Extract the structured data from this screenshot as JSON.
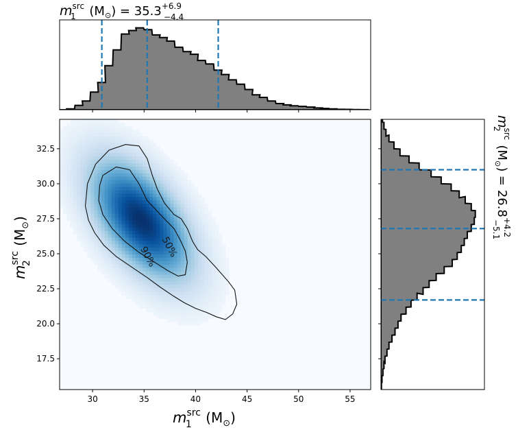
{
  "chart_data": {
    "type": "corner",
    "title_top": {
      "sym": "m",
      "sub": "1",
      "sup": "src",
      "unit": " (M",
      "unit_sub": "⊙",
      "eq": ") = 35.3",
      "plus": "+6.9",
      "minus": "−4.4"
    },
    "title_right": {
      "sym": "m",
      "sub": "2",
      "sup": "src",
      "unit": " (M",
      "unit_sub": "⊙",
      "eq": ") = 26.8",
      "plus": "+4.2",
      "minus": "−5.1"
    },
    "xlabel": {
      "sym": "m",
      "sub": "1",
      "sup": "src",
      "unit": " (M",
      "unit_sub": "⊙",
      "close": ")"
    },
    "ylabel": {
      "sym": "m",
      "sub": "2",
      "sup": "src",
      "unit": " (M",
      "unit_sub": "⊙",
      "close": ")"
    },
    "xlim": [
      26.8,
      57.0
    ],
    "ylim": [
      15.3,
      34.6
    ],
    "xticks": [
      30,
      35,
      40,
      45,
      50,
      55
    ],
    "xtick_labels": [
      "30",
      "35",
      "40",
      "45",
      "50",
      "55"
    ],
    "yticks": [
      17.5,
      20.0,
      22.5,
      25.0,
      27.5,
      30.0,
      32.5
    ],
    "ytick_labels": [
      "17.5",
      "20.0",
      "22.5",
      "25.0",
      "27.5",
      "30.0",
      "32.5"
    ],
    "m1_quantiles": [
      30.9,
      35.3,
      42.2
    ],
    "m2_quantiles": [
      21.7,
      26.8,
      31.0
    ],
    "m1_histogram": {
      "bin_width": 0.75,
      "bins": [
        {
          "x": 26.8,
          "d": 0.0
        },
        {
          "x": 27.5,
          "d": 0.01
        },
        {
          "x": 28.3,
          "d": 0.05
        },
        {
          "x": 29.0,
          "d": 0.1
        },
        {
          "x": 29.8,
          "d": 0.2
        },
        {
          "x": 30.5,
          "d": 0.31
        },
        {
          "x": 31.2,
          "d": 0.5
        },
        {
          "x": 32.0,
          "d": 0.68
        },
        {
          "x": 32.8,
          "d": 0.86
        },
        {
          "x": 33.5,
          "d": 0.9
        },
        {
          "x": 34.2,
          "d": 0.93
        },
        {
          "x": 35.0,
          "d": 0.91
        },
        {
          "x": 35.8,
          "d": 0.85
        },
        {
          "x": 36.5,
          "d": 0.82
        },
        {
          "x": 37.2,
          "d": 0.78
        },
        {
          "x": 38.0,
          "d": 0.71
        },
        {
          "x": 38.8,
          "d": 0.66
        },
        {
          "x": 39.5,
          "d": 0.63
        },
        {
          "x": 40.2,
          "d": 0.56
        },
        {
          "x": 41.0,
          "d": 0.52
        },
        {
          "x": 41.8,
          "d": 0.45
        },
        {
          "x": 42.5,
          "d": 0.4
        },
        {
          "x": 43.2,
          "d": 0.34
        },
        {
          "x": 44.0,
          "d": 0.29
        },
        {
          "x": 44.8,
          "d": 0.23
        },
        {
          "x": 45.5,
          "d": 0.17
        },
        {
          "x": 46.2,
          "d": 0.14
        },
        {
          "x": 47.0,
          "d": 0.1
        },
        {
          "x": 47.8,
          "d": 0.07
        },
        {
          "x": 48.5,
          "d": 0.055
        },
        {
          "x": 49.2,
          "d": 0.045
        },
        {
          "x": 50.0,
          "d": 0.038
        },
        {
          "x": 50.8,
          "d": 0.03
        },
        {
          "x": 51.5,
          "d": 0.02
        },
        {
          "x": 52.2,
          "d": 0.015
        },
        {
          "x": 53.0,
          "d": 0.01
        },
        {
          "x": 53.8,
          "d": 0.005
        },
        {
          "x": 54.5,
          "d": 0.004
        },
        {
          "x": 55.2,
          "d": 0.002
        },
        {
          "x": 56.0,
          "d": 0.001
        }
      ]
    },
    "m2_histogram": {
      "bin_width": 0.48,
      "bins": [
        {
          "y": 15.3,
          "d": 0.005
        },
        {
          "y": 15.8,
          "d": 0.01
        },
        {
          "y": 16.3,
          "d": 0.02
        },
        {
          "y": 16.8,
          "d": 0.03
        },
        {
          "y": 17.2,
          "d": 0.04
        },
        {
          "y": 17.7,
          "d": 0.06
        },
        {
          "y": 18.2,
          "d": 0.08
        },
        {
          "y": 18.7,
          "d": 0.11
        },
        {
          "y": 19.2,
          "d": 0.14
        },
        {
          "y": 19.7,
          "d": 0.17
        },
        {
          "y": 20.2,
          "d": 0.2
        },
        {
          "y": 20.7,
          "d": 0.25
        },
        {
          "y": 21.2,
          "d": 0.3
        },
        {
          "y": 21.7,
          "d": 0.36
        },
        {
          "y": 22.1,
          "d": 0.42
        },
        {
          "y": 22.6,
          "d": 0.48
        },
        {
          "y": 23.1,
          "d": 0.55
        },
        {
          "y": 23.6,
          "d": 0.63
        },
        {
          "y": 24.1,
          "d": 0.71
        },
        {
          "y": 24.6,
          "d": 0.76
        },
        {
          "y": 25.1,
          "d": 0.8
        },
        {
          "y": 25.6,
          "d": 0.83
        },
        {
          "y": 26.1,
          "d": 0.86
        },
        {
          "y": 26.6,
          "d": 0.9
        },
        {
          "y": 27.1,
          "d": 0.93
        },
        {
          "y": 27.6,
          "d": 0.94
        },
        {
          "y": 28.1,
          "d": 0.9
        },
        {
          "y": 28.6,
          "d": 0.84
        },
        {
          "y": 29.0,
          "d": 0.78
        },
        {
          "y": 29.5,
          "d": 0.7
        },
        {
          "y": 30.0,
          "d": 0.6
        },
        {
          "y": 30.5,
          "d": 0.5
        },
        {
          "y": 31.0,
          "d": 0.38
        },
        {
          "y": 31.5,
          "d": 0.28
        },
        {
          "y": 32.0,
          "d": 0.19
        },
        {
          "y": 32.5,
          "d": 0.13
        },
        {
          "y": 33.0,
          "d": 0.08
        },
        {
          "y": 33.4,
          "d": 0.05
        },
        {
          "y": 33.9,
          "d": 0.03
        },
        {
          "y": 34.4,
          "d": 0.015
        }
      ]
    },
    "contours": [
      {
        "label": "90%",
        "label_at": [
          35.4,
          24.8
        ],
        "points": [
          [
            29.5,
            30.0
          ],
          [
            30.3,
            31.4
          ],
          [
            31.6,
            32.4
          ],
          [
            33.2,
            32.8
          ],
          [
            34.5,
            32.7
          ],
          [
            35.3,
            31.8
          ],
          [
            35.8,
            30.6
          ],
          [
            36.3,
            29.6
          ],
          [
            37.0,
            28.6
          ],
          [
            37.9,
            27.8
          ],
          [
            38.6,
            27.5
          ],
          [
            39.2,
            26.8
          ],
          [
            39.7,
            25.9
          ],
          [
            40.2,
            25.3
          ],
          [
            41.0,
            24.8
          ],
          [
            42.0,
            24.0
          ],
          [
            43.2,
            23.0
          ],
          [
            43.8,
            22.4
          ],
          [
            44.0,
            21.4
          ],
          [
            43.6,
            20.7
          ],
          [
            42.9,
            20.3
          ],
          [
            42.0,
            20.5
          ],
          [
            41.1,
            20.8
          ],
          [
            40.0,
            21.1
          ],
          [
            38.9,
            21.5
          ],
          [
            37.8,
            22.0
          ],
          [
            36.6,
            22.6
          ],
          [
            35.3,
            23.3
          ],
          [
            33.9,
            24.0
          ],
          [
            32.3,
            24.8
          ],
          [
            31.1,
            25.6
          ],
          [
            30.2,
            26.5
          ],
          [
            29.6,
            27.4
          ],
          [
            29.3,
            28.4
          ],
          [
            29.5,
            30.0
          ]
        ]
      },
      {
        "label": "50%",
        "label_at": [
          37.5,
          25.5
        ],
        "points": [
          [
            30.7,
            29.9
          ],
          [
            31.0,
            30.6
          ],
          [
            32.3,
            31.2
          ],
          [
            33.6,
            31.0
          ],
          [
            34.5,
            30.0
          ],
          [
            35.3,
            28.8
          ],
          [
            36.2,
            28.1
          ],
          [
            37.1,
            27.4
          ],
          [
            37.9,
            26.8
          ],
          [
            38.5,
            26.0
          ],
          [
            39.0,
            25.2
          ],
          [
            39.2,
            24.4
          ],
          [
            39.0,
            23.5
          ],
          [
            38.3,
            23.4
          ],
          [
            37.3,
            23.8
          ],
          [
            36.0,
            24.4
          ],
          [
            34.5,
            25.1
          ],
          [
            33.1,
            25.9
          ],
          [
            31.9,
            26.8
          ],
          [
            31.0,
            27.8
          ],
          [
            30.6,
            28.8
          ],
          [
            30.7,
            29.9
          ]
        ]
      }
    ],
    "density_model": {
      "mean": [
        34.7,
        27.4
      ],
      "sd_major": 3.6,
      "sd_minor": 1.9,
      "angle_deg": -38
    }
  }
}
